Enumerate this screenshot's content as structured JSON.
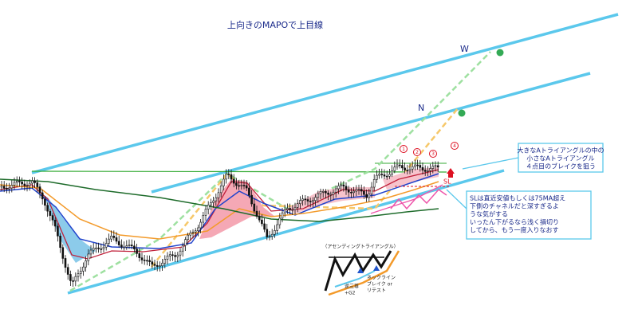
{
  "title": "上向きのMAPOで上目線",
  "labels": {
    "w": "W",
    "n": "N",
    "sl": "SL"
  },
  "points": [
    "1",
    "2",
    "3",
    "4"
  ],
  "note_box_1": {
    "lines": [
      "大きなAトライアングルの中の",
      "小さなAトライアングル",
      "４点目のブレイクを狙う"
    ]
  },
  "note_box_2": {
    "lines": [
      "SLは直近安値もしくは75MA超え",
      "下側のチャネルだと深すぎるよ",
      "うな気がする",
      "いったん下がるなら浅く損切り",
      "してから、もう一度入りなおす"
    ]
  },
  "inset": {
    "title": "（アセンディングトライアングル）",
    "left_note": [
      "逆三尊",
      "+G2"
    ],
    "right_note": [
      "ネックライン",
      "ブレイク or",
      "リテスト"
    ]
  }
}
